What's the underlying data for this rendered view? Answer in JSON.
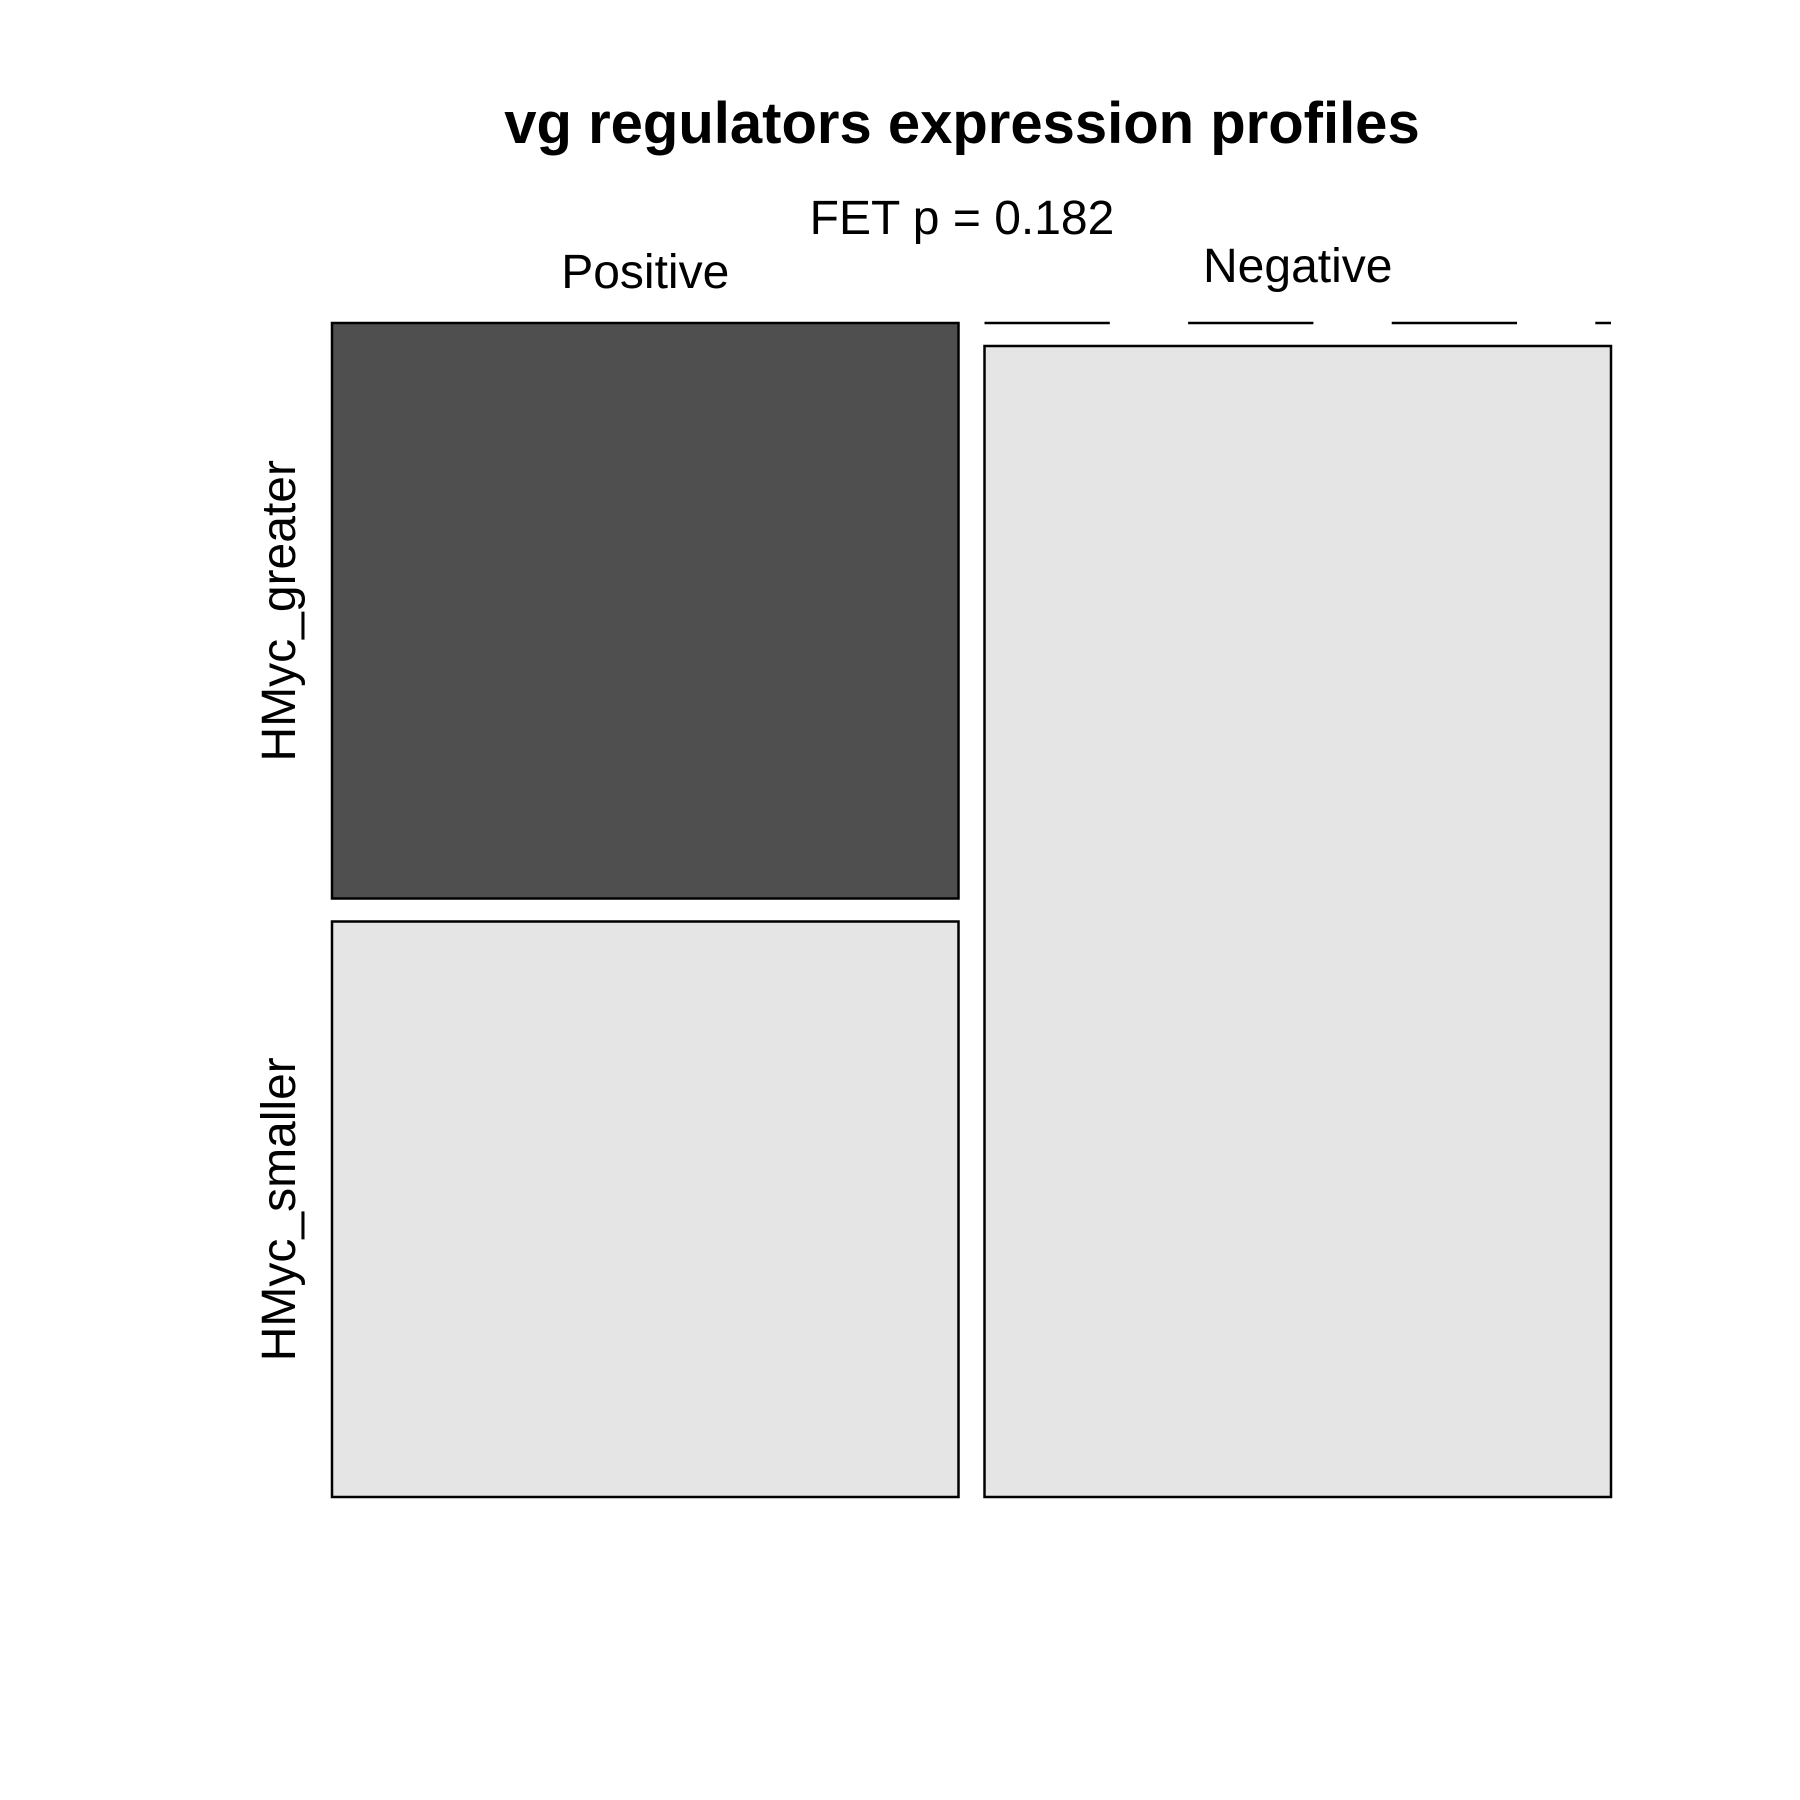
{
  "chart_data": {
    "type": "mosaic",
    "title": "vg regulators expression profiles",
    "subtitle": "FET p = 0.182",
    "columns": [
      "Positive",
      "Negative"
    ],
    "rows": [
      "HMyc_greater",
      "HMyc_smaller"
    ],
    "column_proportions": [
      0.5,
      0.5
    ],
    "cell_proportions": [
      [
        0.5,
        0.5
      ],
      [
        0.0,
        1.0
      ]
    ],
    "cell_colors": [
      [
        "#4f4f4f",
        "#e5e5e5"
      ],
      [
        "#e5e5e5",
        "#e5e5e5"
      ]
    ],
    "empty_cell_marker": "dashed line",
    "grid": false
  }
}
